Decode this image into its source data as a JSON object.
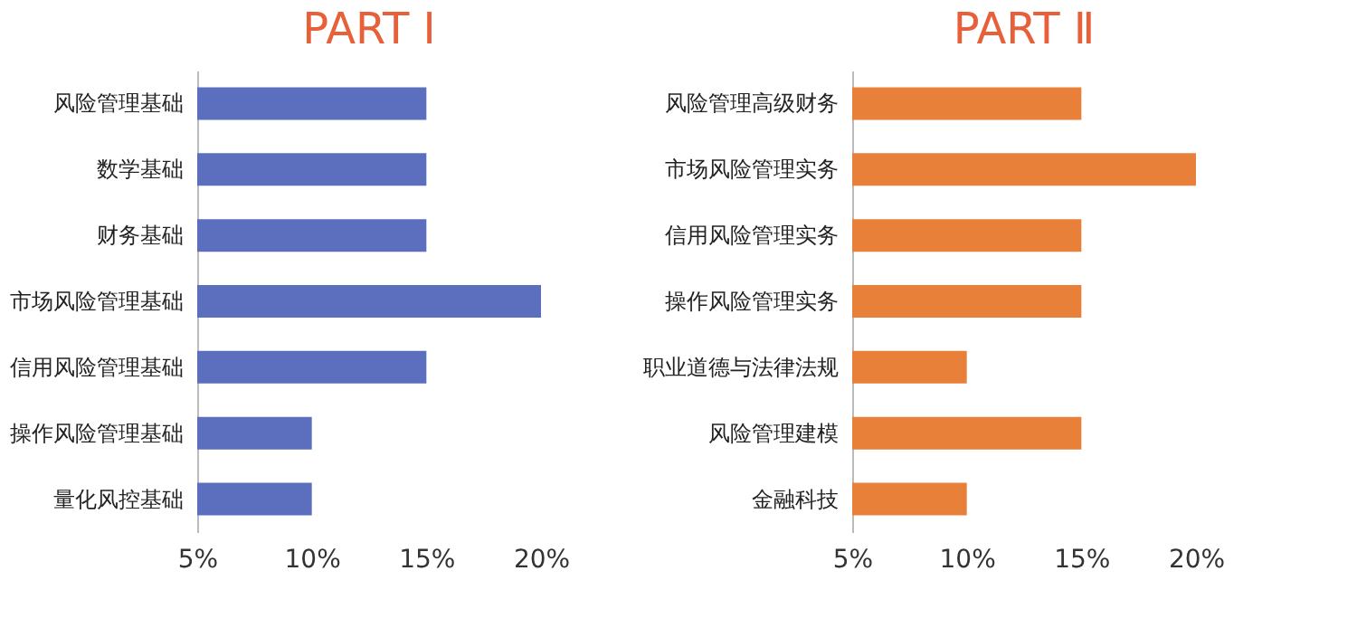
{
  "chart_data": [
    {
      "type": "bar",
      "orientation": "horizontal",
      "title": "PART Ⅰ",
      "categories": [
        "风险管理基础",
        "数学基础",
        "财务基础",
        "市场风险管理基础",
        "信用风险管理基础",
        "操作风险管理基础",
        "量化风控基础"
      ],
      "values": [
        15,
        15,
        15,
        20,
        15,
        10,
        10
      ],
      "color": "#5b6fbe",
      "xlim": [
        5,
        20
      ],
      "xticks": [
        {
          "value": 5,
          "label": "5%"
        },
        {
          "value": 10,
          "label": "10%"
        },
        {
          "value": 15,
          "label": "15%"
        },
        {
          "value": 20,
          "label": "20%"
        }
      ],
      "grid": false
    },
    {
      "type": "bar",
      "orientation": "horizontal",
      "title": "PART Ⅱ",
      "categories": [
        "风险管理高级财务",
        "市场风险管理实务",
        "信用风险管理实务",
        "操作风险管理实务",
        "职业道德与法律法规",
        "风险管理建模",
        "金融科技"
      ],
      "values": [
        15,
        20,
        15,
        15,
        10,
        15,
        10
      ],
      "color": "#e8803a",
      "xlim": [
        5,
        20
      ],
      "xticks": [
        {
          "value": 5,
          "label": "5%"
        },
        {
          "value": 10,
          "label": "10%"
        },
        {
          "value": 15,
          "label": "15%"
        },
        {
          "value": 20,
          "label": "20%"
        }
      ],
      "grid": false
    }
  ]
}
